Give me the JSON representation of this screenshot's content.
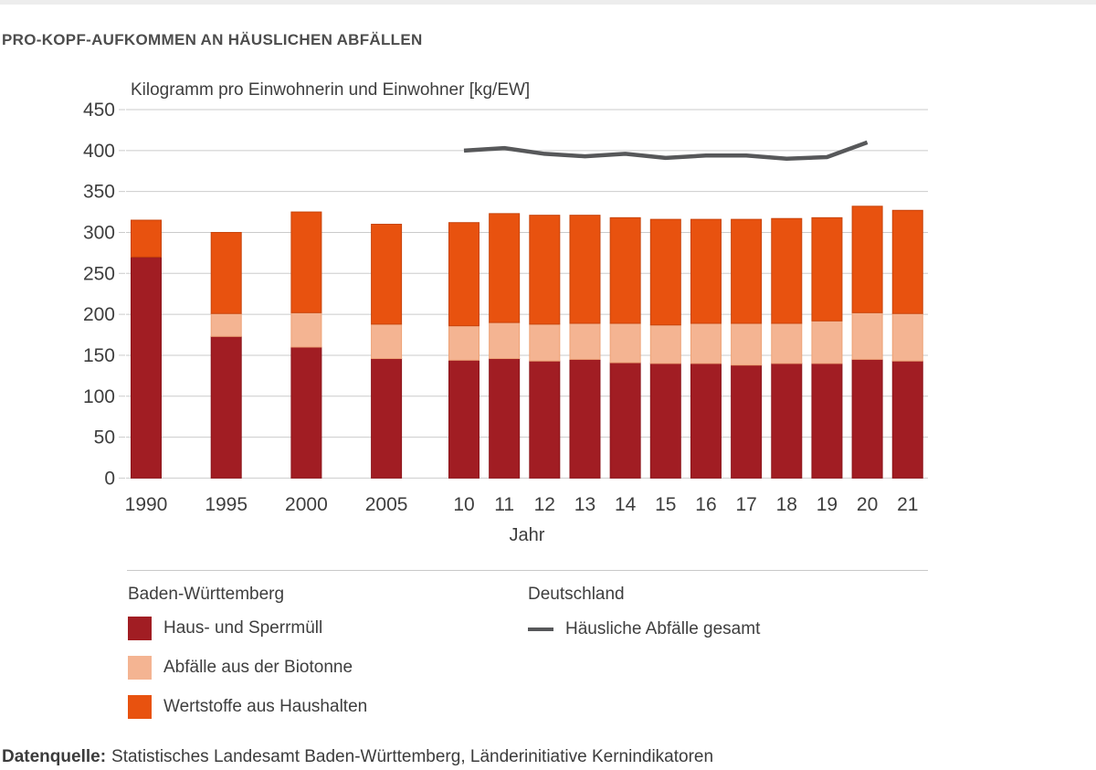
{
  "header": {
    "title": "PRO-KOPF-AUFKOMMEN AN HÄUSLICHEN ABFÄLLEN"
  },
  "chart_data": {
    "type": "bar",
    "stacked": true,
    "axis_title": "Kilogramm pro Einwohnerin und Einwohner [kg/EW]",
    "xlabel": "Jahr",
    "ylim": [
      0,
      450
    ],
    "ytick_step": 50,
    "grid": true,
    "categories": [
      "1990",
      "1995",
      "2000",
      "2005",
      "10",
      "11",
      "12",
      "13",
      "14",
      "15",
      "16",
      "17",
      "18",
      "19",
      "20",
      "21"
    ],
    "series": [
      {
        "name": "Haus- und Sperrmüll",
        "color": "#a11d23",
        "border": "#8c151b",
        "values": [
          270,
          173,
          160,
          146,
          144,
          146,
          143,
          145,
          141,
          140,
          140,
          138,
          140,
          140,
          145,
          143
        ]
      },
      {
        "name": "Abfälle aus der Biotonne",
        "color": "#f4b492",
        "border": "#eda276",
        "values": [
          0,
          28,
          42,
          42,
          42,
          44,
          45,
          44,
          48,
          47,
          49,
          51,
          49,
          52,
          57,
          58
        ]
      },
      {
        "name": "Wertstoffe aus Haushalten",
        "color": "#e8520f",
        "border": "#c8440b",
        "values": [
          45,
          99,
          123,
          122,
          126,
          133,
          133,
          132,
          129,
          129,
          127,
          127,
          128,
          126,
          130,
          126
        ]
      }
    ],
    "line_series": {
      "name": "Häusliche Abfälle gesamt",
      "color": "#57585a",
      "categories": [
        "10",
        "11",
        "12",
        "13",
        "14",
        "15",
        "16",
        "17",
        "18",
        "19",
        "20"
      ],
      "values": [
        400,
        403,
        396,
        393,
        396,
        391,
        394,
        394,
        390,
        392,
        410
      ]
    }
  },
  "legend": {
    "bw_title": "Baden-Württemberg",
    "de_title": "Deutschland"
  },
  "footer": {
    "label": "Datenquelle:",
    "text": "Statistisches Landesamt Baden-Württemberg, Länderinitiative Kernindikatoren"
  }
}
